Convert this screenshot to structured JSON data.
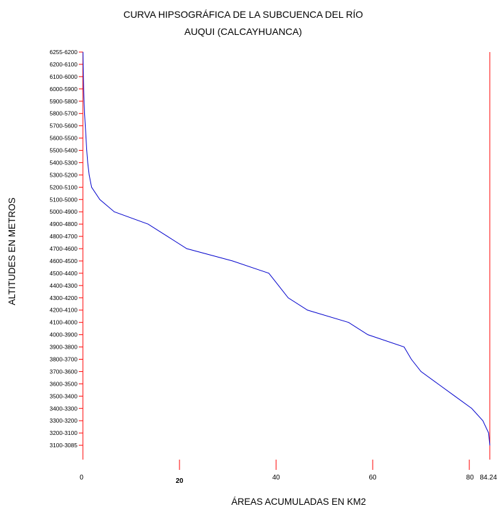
{
  "chart_data": {
    "type": "line",
    "title_line1": "CURVA HIPSOGRÁFICA DE LA SUBCUENCA DEL RÍO",
    "title_line2": "AUQUI (CALCAYHUANCA)",
    "xlabel": "ÁREAS ACUMULADAS EN KM2",
    "ylabel": "ALTITUDES EN METROS",
    "xlim": [
      0,
      84.24
    ],
    "x_ticks": [
      {
        "value": 0,
        "label": "0",
        "bold": false
      },
      {
        "value": 20,
        "label": "20",
        "bold": true
      },
      {
        "value": 40,
        "label": "40",
        "bold": false
      },
      {
        "value": 60,
        "label": "60",
        "bold": false
      },
      {
        "value": 80,
        "label": "80",
        "bold": false
      },
      {
        "value": 84.24,
        "label": "84.24",
        "bold": false
      }
    ],
    "y_categories": [
      "6255-6200",
      "6200-6100",
      "6100-6000",
      "6000-5900",
      "5900-5800",
      "5800-5700",
      "5700-5600",
      "5600-5500",
      "5500-5400",
      "5400-5300",
      "5300-5200",
      "5200-5100",
      "5100-5000",
      "5000-4900",
      "4900-4800",
      "4800-4700",
      "4700-4600",
      "4600-4500",
      "4500-4400",
      "4400-4300",
      "4300-4200",
      "4200-4100",
      "4100-4000",
      "4000-3900",
      "3900-3800",
      "3800-3700",
      "3700-3600",
      "3600-3500",
      "3500-3400",
      "3400-3300",
      "3300-3200",
      "3200-3100",
      "3100-3085"
    ],
    "series": [
      {
        "color": "#0000cc",
        "points": [
          {
            "x": 0.02,
            "y": 0
          },
          {
            "x": 0.05,
            "y": 1
          },
          {
            "x": 0.1,
            "y": 2
          },
          {
            "x": 0.15,
            "y": 3
          },
          {
            "x": 0.25,
            "y": 4
          },
          {
            "x": 0.35,
            "y": 5
          },
          {
            "x": 0.5,
            "y": 6
          },
          {
            "x": 0.65,
            "y": 7
          },
          {
            "x": 0.8,
            "y": 8
          },
          {
            "x": 1.0,
            "y": 9
          },
          {
            "x": 1.3,
            "y": 10
          },
          {
            "x": 1.8,
            "y": 11
          },
          {
            "x": 3.5,
            "y": 12
          },
          {
            "x": 6.5,
            "y": 13
          },
          {
            "x": 13.5,
            "y": 14
          },
          {
            "x": 17.5,
            "y": 15
          },
          {
            "x": 21.5,
            "y": 16
          },
          {
            "x": 31.0,
            "y": 17
          },
          {
            "x": 38.5,
            "y": 18
          },
          {
            "x": 40.5,
            "y": 19
          },
          {
            "x": 42.5,
            "y": 20
          },
          {
            "x": 46.5,
            "y": 21
          },
          {
            "x": 55.0,
            "y": 22
          },
          {
            "x": 59.0,
            "y": 23
          },
          {
            "x": 66.5,
            "y": 24
          },
          {
            "x": 68.0,
            "y": 25
          },
          {
            "x": 70.0,
            "y": 26
          },
          {
            "x": 73.5,
            "y": 27
          },
          {
            "x": 77.0,
            "y": 28
          },
          {
            "x": 80.5,
            "y": 29
          },
          {
            "x": 82.8,
            "y": 30
          },
          {
            "x": 84.0,
            "y": 31
          },
          {
            "x": 84.24,
            "y": 32
          }
        ]
      }
    ],
    "colors": {
      "axis": "#ff0000",
      "line": "#0000cc",
      "text": "#000000"
    }
  }
}
